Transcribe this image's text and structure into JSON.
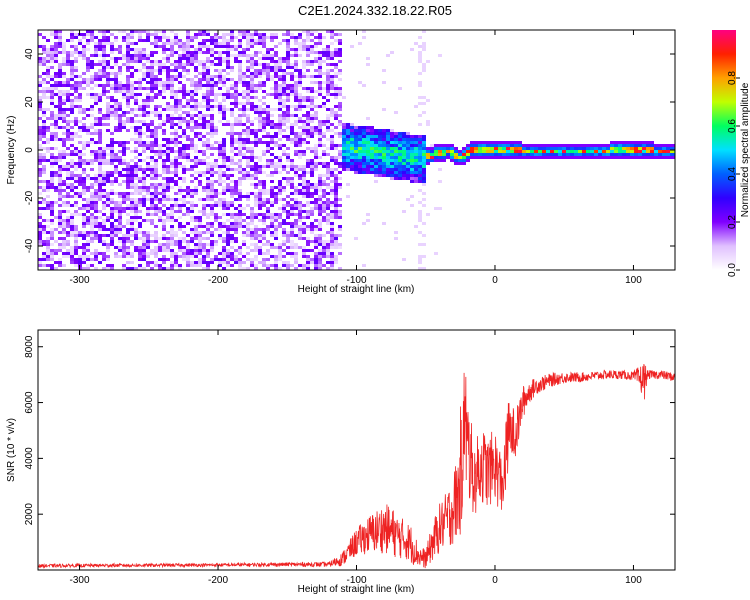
{
  "figure": {
    "title": "C2E1.2024.332.18.22.R05"
  },
  "chart_data": [
    {
      "type": "heatmap",
      "xlabel": "Height of straight line (km)",
      "ylabel": "Frequency (Hz)",
      "xlim": [
        -330,
        130
      ],
      "ylim": [
        -50,
        50
      ],
      "xticks": [
        -300,
        -200,
        -100,
        0,
        100
      ],
      "yticks": [
        -40,
        -20,
        0,
        20,
        40
      ],
      "colorbar": {
        "label": "Normalized spectral amplitude",
        "range": [
          0,
          1
        ],
        "ticks": [
          "0.0",
          "0.2",
          "0.4",
          "0.6",
          "0.8"
        ],
        "colormap": [
          "#ffffff",
          "#e0c0ff",
          "#8000ff",
          "#3000ff",
          "#0060ff",
          "#00e0ff",
          "#00ff60",
          "#c0ff00",
          "#ffa000",
          "#ff2000",
          "#ff0080"
        ]
      },
      "regions": [
        {
          "x": [
            -330,
            -112
          ],
          "freq": [
            -50,
            50
          ],
          "amplitude": [
            0.05,
            0.2
          ]
        },
        {
          "x": [
            -112,
            -50
          ],
          "freq": [
            -12,
            10
          ],
          "amplitude": [
            0.2,
            0.6
          ]
        },
        {
          "x": [
            -50,
            130
          ],
          "freq": [
            -3,
            3
          ],
          "amplitude": [
            0.5,
            0.95
          ]
        }
      ],
      "ridge": {
        "x": [
          -112,
          -90,
          -70,
          -55,
          -45,
          -35,
          -28,
          -20,
          -10,
          0,
          10,
          20,
          40,
          60,
          80,
          100,
          115,
          130
        ],
        "freq": [
          2,
          0,
          -2,
          -3,
          -1,
          0,
          -3,
          0,
          1,
          1,
          1,
          0,
          0,
          0,
          0,
          1,
          0,
          0
        ]
      }
    },
    {
      "type": "line",
      "xlabel": "Height of straight line (km)",
      "ylabel": "SNR (10 * v/v)",
      "xlim": [
        -330,
        130
      ],
      "ylim": [
        0,
        8600
      ],
      "xticks": [
        -300,
        -200,
        -100,
        0,
        100
      ],
      "yticks": [
        2000,
        4000,
        6000,
        8000
      ],
      "series": [
        {
          "color": "#ee2222",
          "x": [
            -330,
            -300,
            -250,
            -200,
            -150,
            -120,
            -110,
            -100,
            -90,
            -80,
            -75,
            -70,
            -65,
            -60,
            -55,
            -50,
            -45,
            -40,
            -35,
            -30,
            -25,
            -22,
            -20,
            -15,
            -10,
            -5,
            0,
            5,
            10,
            15,
            20,
            25,
            30,
            40,
            50,
            60,
            70,
            80,
            90,
            100,
            108,
            110,
            120,
            130
          ],
          "y": [
            150,
            160,
            170,
            180,
            200,
            200,
            400,
            1000,
            1300,
            1500,
            1400,
            1200,
            1100,
            900,
            500,
            400,
            1000,
            1500,
            1800,
            2200,
            3000,
            5500,
            4500,
            3200,
            3800,
            3500,
            3800,
            3000,
            5000,
            4800,
            6000,
            6400,
            6600,
            6800,
            6900,
            6900,
            6950,
            7000,
            7000,
            6950,
            6800,
            7000,
            7000,
            6900
          ],
          "spread": [
            60,
            60,
            60,
            60,
            70,
            90,
            250,
            500,
            700,
            900,
            900,
            800,
            700,
            700,
            400,
            350,
            700,
            900,
            1000,
            1300,
            1800,
            2500,
            2000,
            1300,
            1400,
            1300,
            1300,
            1200,
            1200,
            900,
            600,
            400,
            300,
            250,
            200,
            180,
            160,
            160,
            160,
            160,
            700,
            160,
            160,
            160
          ]
        }
      ]
    }
  ]
}
